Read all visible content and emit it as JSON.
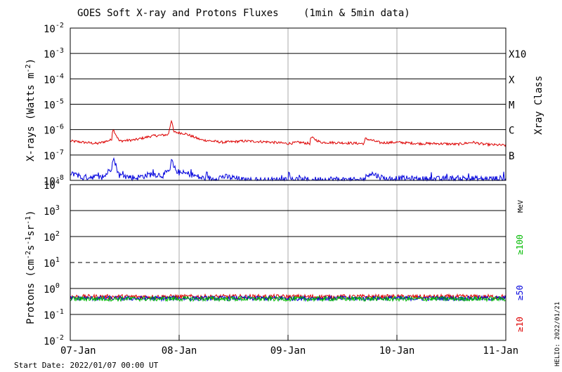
{
  "chart_data": {
    "type": "line",
    "title": "GOES Soft X-ray and Protons Fluxes",
    "subtitle": "(1min & 5min data)",
    "x_ticks": [
      "07-Jan",
      "08-Jan",
      "09-Jan",
      "10-Jan",
      "11-Jan"
    ],
    "x_range_days": [
      0,
      4
    ],
    "start_date": "Start Date: 2022/01/07 00:00 UT",
    "creator": "HELIO: 2022/01/21",
    "grid": true,
    "panels": [
      {
        "name": "xray",
        "ylabel": "X-rays (Watts m",
        "ylabel_sup": "-2",
        "ylabel_end": ")",
        "y_scale": "log",
        "ylim_exp": [
          -8,
          -2
        ],
        "tick_exponents": [
          -2,
          -3,
          -4,
          -5,
          -6,
          -7,
          -8
        ],
        "right_axis_title": "Xray Class",
        "classes": [
          {
            "label": "X10",
            "exp": -3
          },
          {
            "label": "X",
            "exp": -4
          },
          {
            "label": "M",
            "exp": -5
          },
          {
            "label": "C",
            "exp": -6
          },
          {
            "label": "B",
            "exp": -7
          }
        ],
        "series": [
          {
            "channel": "long (red)",
            "color": "#dd0000",
            "x_days": [
              0,
              0.12,
              0.25,
              0.38,
              0.39,
              0.45,
              0.6,
              0.75,
              0.9,
              0.93,
              0.95,
              1.05,
              1.2,
              1.4,
              1.6,
              1.8,
              2.0,
              2.1,
              2.2,
              2.21,
              2.3,
              2.5,
              2.7,
              2.71,
              2.85,
              3.0,
              3.2,
              3.4,
              3.55,
              3.7,
              3.8,
              4.0
            ],
            "y_log10": [
              -6.45,
              -6.5,
              -6.55,
              -6.4,
              -5.95,
              -6.45,
              -6.4,
              -6.25,
              -6.2,
              -5.6,
              -6.1,
              -6.15,
              -6.4,
              -6.5,
              -6.45,
              -6.48,
              -6.55,
              -6.5,
              -6.55,
              -6.3,
              -6.5,
              -6.52,
              -6.55,
              -6.35,
              -6.52,
              -6.5,
              -6.55,
              -6.55,
              -6.58,
              -6.5,
              -6.58,
              -6.62
            ]
          },
          {
            "channel": "short (blue)",
            "color": "#0000dd",
            "x_days": [
              0,
              0.05,
              0.1,
              0.2,
              0.3,
              0.38,
              0.39,
              0.45,
              0.6,
              0.75,
              0.85,
              0.92,
              0.93,
              0.95,
              1.0,
              1.1,
              1.2,
              1.3,
              1.4,
              1.5,
              1.6,
              1.8,
              2.0,
              2.2,
              2.4,
              2.6,
              2.7,
              2.75,
              2.9,
              3.0,
              3.2,
              3.4,
              3.6,
              3.8,
              4.0
            ],
            "y_log10": [
              -7.8,
              -7.7,
              -7.9,
              -7.85,
              -7.9,
              -7.5,
              -7.05,
              -7.8,
              -7.9,
              -7.75,
              -7.8,
              -7.6,
              -7.15,
              -7.5,
              -7.7,
              -7.75,
              -7.9,
              -7.95,
              -7.85,
              -7.9,
              -8.0,
              -8.0,
              -7.95,
              -7.98,
              -7.95,
              -8.0,
              -7.95,
              -7.7,
              -7.95,
              -7.92,
              -7.95,
              -7.95,
              -7.92,
              -7.95,
              -7.92
            ]
          }
        ]
      },
      {
        "name": "protons",
        "ylabel": "Protons (cm",
        "ylabel_sup1": "-2",
        "ylabel_mid1": "s",
        "ylabel_sup2": "-1",
        "ylabel_mid2": "sr",
        "ylabel_sup3": "-1",
        "ylabel_end": ")",
        "y_scale": "log",
        "ylim_exp": [
          -2,
          4
        ],
        "tick_exponents": [
          4,
          3,
          2,
          1,
          0,
          -1,
          -2
        ],
        "threshold_exp": 1,
        "energy_unit": "MeV",
        "energy_channels": [
          {
            "label": "≥100",
            "color": "#00bb00"
          },
          {
            "label": "≥50",
            "color": "#0000dd"
          },
          {
            "label": "≥10",
            "color": "#dd0000"
          }
        ],
        "series": [
          {
            "name": "≥10",
            "color": "#dd0000",
            "baseline_log10": -0.32
          },
          {
            "name": "≥50",
            "color": "#0000dd",
            "baseline_log10": -0.38
          },
          {
            "name": "≥100",
            "color": "#00bb00",
            "baseline_log10": -0.4
          }
        ]
      }
    ]
  }
}
